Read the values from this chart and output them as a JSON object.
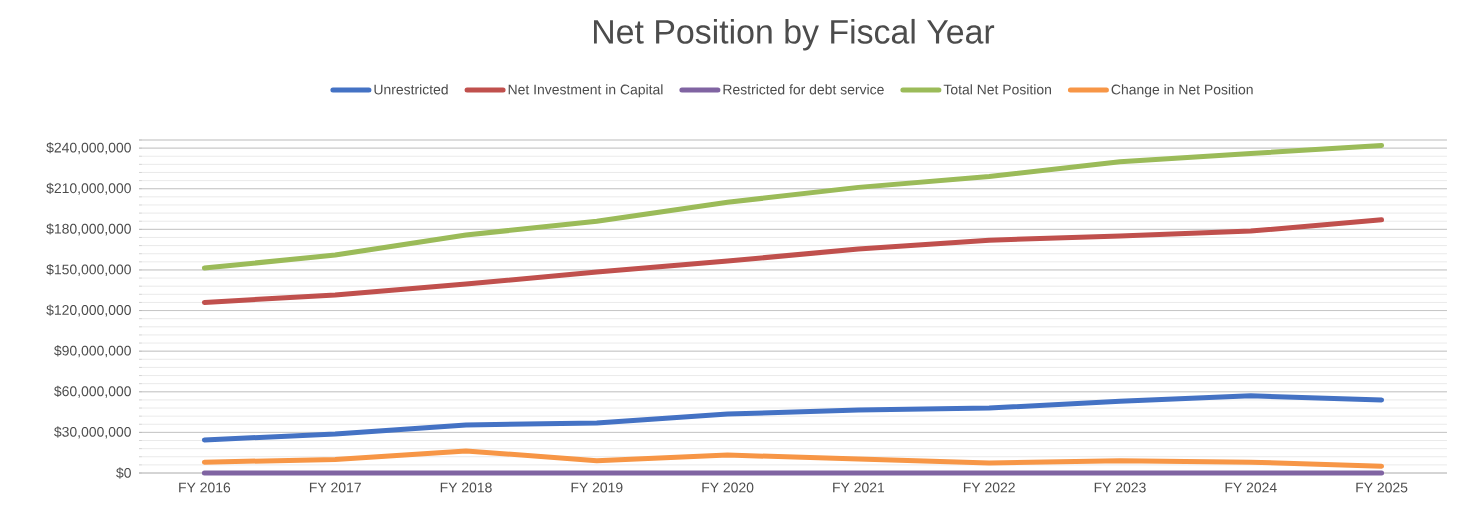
{
  "chart_data": {
    "type": "line",
    "title": "Net Position by Fiscal Year",
    "categories": [
      "FY 2016",
      "FY 2017",
      "FY 2018",
      "FY 2019",
      "FY 2020",
      "FY 2021",
      "FY 2022",
      "FY 2023",
      "FY 2024",
      "FY 2025"
    ],
    "series": [
      {
        "name": "Unrestricted",
        "color": "#4472c4",
        "values": [
          24400000,
          28800000,
          35500000,
          37000000,
          43600000,
          46500000,
          48000000,
          53000000,
          57000000,
          54000000
        ]
      },
      {
        "name": "Net Investment in Capital",
        "color": "#c0504d",
        "values": [
          126000000,
          131500000,
          139600000,
          148500000,
          156600000,
          165400000,
          172000000,
          175000000,
          178700000,
          187000000
        ]
      },
      {
        "name": "Restricted for debt service",
        "color": "#8064a2",
        "values": [
          0,
          0,
          0,
          0,
          0,
          0,
          0,
          0,
          0,
          0
        ]
      },
      {
        "name": "Total Net Position",
        "color": "#9bbb59",
        "values": [
          151400000,
          161000000,
          175800000,
          186000000,
          200000000,
          211000000,
          219000000,
          230000000,
          236000000,
          242000000
        ]
      },
      {
        "name": "Change in Net Position",
        "color": "#f79646",
        "values": [
          8000000,
          10000000,
          16300000,
          9000000,
          13300000,
          10300000,
          7400000,
          9000000,
          8000000,
          5000000
        ]
      }
    ],
    "ylim": [
      0,
      246000000
    ],
    "yticks": [
      {
        "value": 0,
        "label": "$0"
      },
      {
        "value": 30000000,
        "label": "$30,000,000"
      },
      {
        "value": 60000000,
        "label": "$60,000,000"
      },
      {
        "value": 90000000,
        "label": "$90,000,000"
      },
      {
        "value": 120000000,
        "label": "$120,000,000"
      },
      {
        "value": 150000000,
        "label": "$150,000,000"
      },
      {
        "value": 180000000,
        "label": "$180,000,000"
      },
      {
        "value": 210000000,
        "label": "$210,000,000"
      },
      {
        "value": 240000000,
        "label": "$240,000,000"
      },
      {
        "value": 246000000,
        "label": null
      }
    ],
    "grid": "y",
    "legend": "top",
    "marker": "none",
    "line_style": "solid"
  }
}
